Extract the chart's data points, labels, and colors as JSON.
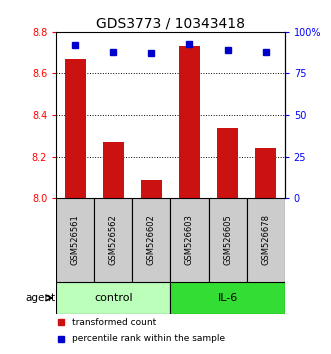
{
  "title": "GDS3773 / 10343418",
  "samples": [
    "GSM526561",
    "GSM526562",
    "GSM526602",
    "GSM526603",
    "GSM526605",
    "GSM526678"
  ],
  "red_values": [
    8.67,
    8.27,
    8.09,
    8.73,
    8.34,
    8.24
  ],
  "blue_values": [
    92,
    88,
    87,
    93,
    89,
    88
  ],
  "ylim_left": [
    8.0,
    8.8
  ],
  "ylim_right": [
    0,
    100
  ],
  "yticks_left": [
    8.0,
    8.2,
    8.4,
    8.6,
    8.8
  ],
  "yticks_right": [
    0,
    25,
    50,
    75,
    100
  ],
  "ytick_labels_right": [
    "0",
    "25",
    "50",
    "75",
    "100%"
  ],
  "groups": [
    {
      "label": "control",
      "indices": [
        0,
        1,
        2
      ],
      "color": "#bbffbb"
    },
    {
      "label": "IL-6",
      "indices": [
        3,
        4,
        5
      ],
      "color": "#33dd33"
    }
  ],
  "agent_label": "agent",
  "bar_color": "#cc1111",
  "dot_color": "#0000cc",
  "bar_width": 0.55,
  "grid_color": "#000000",
  "legend_red_label": "transformed count",
  "legend_blue_label": "percentile rank within the sample",
  "bg_sample_color": "#cccccc",
  "title_fontsize": 10,
  "tick_fontsize": 7,
  "sample_fontsize": 6,
  "group_fontsize": 8,
  "legend_fontsize": 6.5
}
